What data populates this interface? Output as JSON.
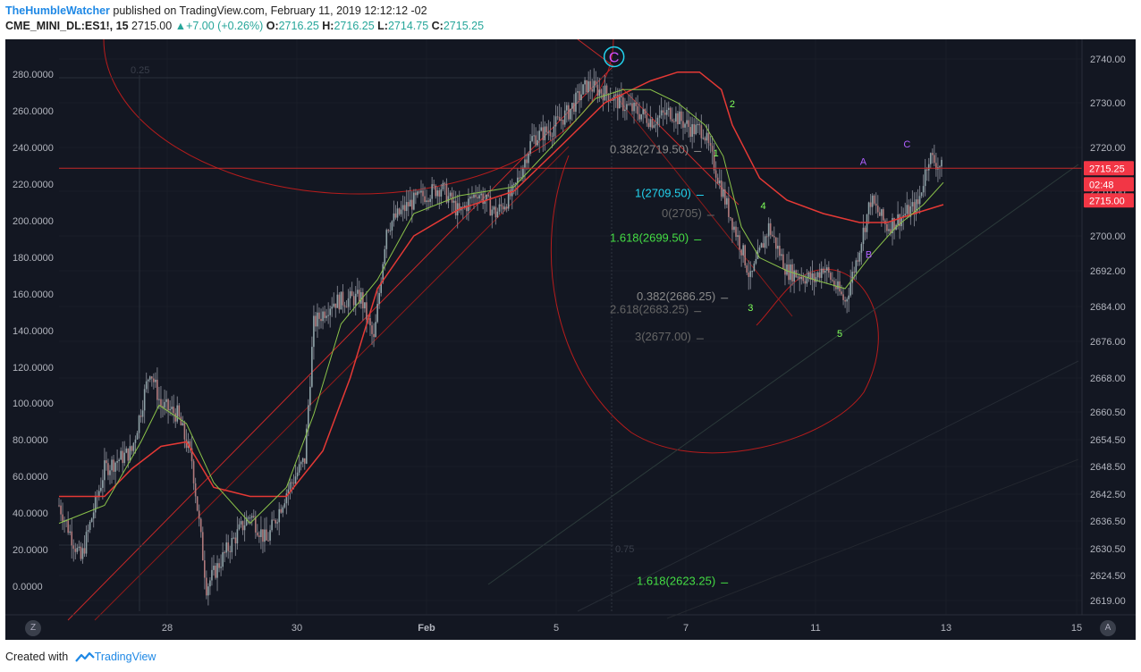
{
  "header": {
    "author": "TheHumbleWatcher",
    "published_text": " published on TradingView.com, February 11, 2019 12:12:12 -02",
    "symbol": "CME_MINI_DL:ES1!, 15",
    "last_price": "2715.00",
    "change_arrow": "▲",
    "change": "+7.00 (+0.26%)",
    "open_label": "O:",
    "open": "2716.25",
    "high_label": "H:",
    "high": "2716.25",
    "low_label": "L:",
    "low": "2714.75",
    "close_label": "C:",
    "close": "2715.25"
  },
  "footer": {
    "created_with": "Created with",
    "brand": "TradingView"
  },
  "buttons": {
    "zoom": "Z",
    "auto": "A"
  },
  "colors": {
    "background": "#131722",
    "up": "#26a69a",
    "down": "#ef5350",
    "candle": "#787b86",
    "ma_red": "#e53935",
    "ma_green": "#8bc34a",
    "fib_cyan": "#22d3ee",
    "fib_green": "#44dd44",
    "wave_label": "#7fff5a",
    "abc_label": "#b060ff",
    "price_tag": "#f23645",
    "c_marker": "#d050ff"
  },
  "chart_data": {
    "type": "candlestick",
    "symbol": "CME_MINI_DL:ES1!",
    "interval": "15",
    "x_tick_labels": [
      "28",
      "30",
      "Feb",
      "5",
      "7",
      "11",
      "13",
      "15"
    ],
    "right_axis": {
      "ticks": [
        "2740.00",
        "2730.00",
        "2720.00",
        "2710.00",
        "2700.00",
        "2692.00",
        "2684.00",
        "2676.00",
        "2668.00",
        "2660.50",
        "2654.50",
        "2648.50",
        "2642.50",
        "2636.50",
        "2630.50",
        "2624.50",
        "2619.00"
      ],
      "current_price": "2715.25",
      "countdown": "02:48",
      "secondary_price": "2715.00"
    },
    "left_axis": {
      "ticks": [
        "280.0000",
        "260.0000",
        "240.0000",
        "220.0000",
        "200.0000",
        "180.0000",
        "160.0000",
        "140.0000",
        "120.0000",
        "100.0000",
        "80.0000",
        "60.0000",
        "40.0000",
        "20.0000",
        "0.0000"
      ]
    },
    "price_path": [
      [
        0.0,
        2640
      ],
      [
        1.2,
        2628
      ],
      [
        2.5,
        2648
      ],
      [
        4.0,
        2652
      ],
      [
        5.0,
        2670
      ],
      [
        5.6,
        2662
      ],
      [
        6.5,
        2660
      ],
      [
        7.3,
        2650
      ],
      [
        8.1,
        2622
      ],
      [
        9.2,
        2630
      ],
      [
        10.5,
        2638
      ],
      [
        11.4,
        2632
      ],
      [
        12.5,
        2643
      ],
      [
        13.5,
        2650
      ],
      [
        14.0,
        2680
      ],
      [
        15.0,
        2685
      ],
      [
        16.6,
        2686
      ],
      [
        17.3,
        2676
      ],
      [
        18.0,
        2702
      ],
      [
        19.2,
        2707
      ],
      [
        20.0,
        2709
      ],
      [
        21.0,
        2711
      ],
      [
        22.0,
        2705
      ],
      [
        23.0,
        2710
      ],
      [
        24.0,
        2705
      ],
      [
        25.0,
        2710
      ],
      [
        26.0,
        2722
      ],
      [
        27.0,
        2724
      ],
      [
        28.0,
        2728
      ],
      [
        29.0,
        2734
      ],
      [
        30.2,
        2732
      ],
      [
        30.8,
        2730
      ],
      [
        31.8,
        2728
      ],
      [
        32.6,
        2726
      ],
      [
        33.6,
        2728
      ],
      [
        34.8,
        2724
      ],
      [
        35.4,
        2724
      ],
      [
        36.6,
        2708
      ],
      [
        37.6,
        2696
      ],
      [
        38.0,
        2690
      ],
      [
        39.0,
        2702
      ],
      [
        40.0,
        2692
      ],
      [
        41.5,
        2690
      ],
      [
        42.0,
        2693
      ],
      [
        43.2,
        2685
      ],
      [
        43.8,
        2694
      ],
      [
        44.6,
        2708
      ],
      [
        45.5,
        2702
      ],
      [
        46.2,
        2704
      ],
      [
        47.2,
        2707
      ],
      [
        47.8,
        2718
      ],
      [
        48.6,
        2715
      ]
    ],
    "moving_average_red": [
      [
        0.0,
        2642
      ],
      [
        2.5,
        2642
      ],
      [
        4.0,
        2648
      ],
      [
        5.6,
        2653
      ],
      [
        7.0,
        2654
      ],
      [
        8.5,
        2644
      ],
      [
        10.5,
        2642
      ],
      [
        12.5,
        2642
      ],
      [
        14.5,
        2652
      ],
      [
        16.0,
        2668
      ],
      [
        17.5,
        2688
      ],
      [
        19.5,
        2700
      ],
      [
        22.0,
        2706
      ],
      [
        25.0,
        2710
      ],
      [
        28.0,
        2722
      ],
      [
        30.0,
        2730
      ],
      [
        32.5,
        2735
      ],
      [
        34.0,
        2737
      ],
      [
        35.2,
        2737
      ],
      [
        36.4,
        2733
      ],
      [
        37.0,
        2725
      ],
      [
        38.5,
        2713
      ],
      [
        40.0,
        2708
      ],
      [
        42.0,
        2705
      ],
      [
        44.0,
        2703
      ],
      [
        45.5,
        2703
      ],
      [
        47.0,
        2705
      ],
      [
        48.6,
        2707
      ]
    ],
    "moving_average_green": [
      [
        0.0,
        2636
      ],
      [
        2.5,
        2640
      ],
      [
        4.5,
        2654
      ],
      [
        5.5,
        2662
      ],
      [
        7.0,
        2658
      ],
      [
        8.5,
        2645
      ],
      [
        10.5,
        2636
      ],
      [
        12.5,
        2644
      ],
      [
        14.0,
        2660
      ],
      [
        15.5,
        2680
      ],
      [
        17.5,
        2690
      ],
      [
        19.5,
        2705
      ],
      [
        22.0,
        2709
      ],
      [
        25.0,
        2711
      ],
      [
        27.5,
        2722
      ],
      [
        29.5,
        2731
      ],
      [
        31.0,
        2733
      ],
      [
        32.5,
        2733
      ],
      [
        34.0,
        2730
      ],
      [
        35.5,
        2725
      ],
      [
        36.5,
        2718
      ],
      [
        37.5,
        2702
      ],
      [
        38.5,
        2695
      ],
      [
        40.0,
        2692
      ],
      [
        41.5,
        2690
      ],
      [
        43.2,
        2688
      ],
      [
        44.5,
        2695
      ],
      [
        46.0,
        2702
      ],
      [
        47.5,
        2707
      ],
      [
        48.6,
        2712
      ]
    ],
    "fib_levels": [
      {
        "label": "0.382(2719.50)",
        "price": 2719.5,
        "color": "#8a8a8a"
      },
      {
        "label": "1(2709.50)",
        "price": 2709.5,
        "color": "#22d3ee"
      },
      {
        "label": "0(2705)",
        "price": 2705.0,
        "color": "#666666"
      },
      {
        "label": "1.618(2699.50)",
        "price": 2699.5,
        "color": "#44dd44"
      },
      {
        "label": "0.382(2686.25)",
        "price": 2686.25,
        "color": "#8a8a8a"
      },
      {
        "label": "2.618(2683.25)",
        "price": 2683.25,
        "color": "#666666"
      },
      {
        "label": "3(2677.00)",
        "price": 2677.0,
        "color": "#666666"
      },
      {
        "label": "1.618(2623.25)",
        "price": 2623.25,
        "color": "#44dd44"
      }
    ],
    "fan_labels": [
      "0.25",
      "0.75"
    ],
    "wave_labels": [
      {
        "label": "C",
        "x": 30.5,
        "price": 2739.5,
        "circled": true
      },
      {
        "label": "1",
        "x": 36.1,
        "price": 2718
      },
      {
        "label": "2",
        "x": 37.0,
        "price": 2729
      },
      {
        "label": "3",
        "x": 38.0,
        "price": 2683
      },
      {
        "label": "4",
        "x": 38.7,
        "price": 2706
      },
      {
        "label": "5",
        "x": 42.9,
        "price": 2677
      },
      {
        "label": "A",
        "x": 44.2,
        "price": 2716
      },
      {
        "label": "B",
        "x": 44.5,
        "price": 2695
      },
      {
        "label": "C",
        "x": 46.6,
        "price": 2720
      }
    ]
  }
}
